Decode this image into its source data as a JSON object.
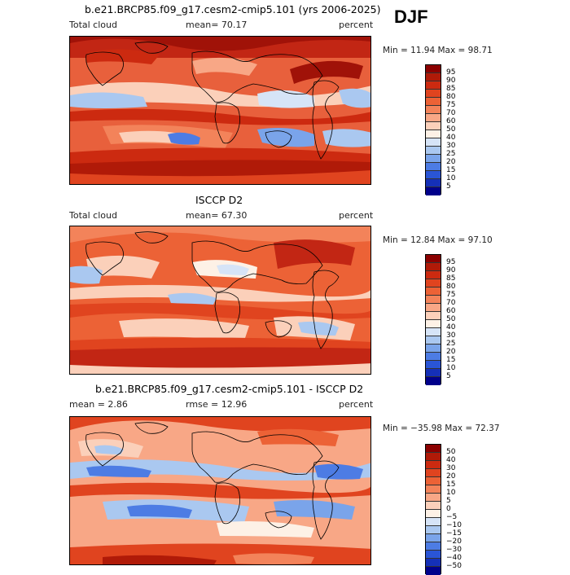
{
  "season": "DJF",
  "panels": [
    {
      "title": "b.e21.BRCP85.f09_g17.cesm2-cmip5.101 (yrs 2006-2025)",
      "left": "Total cloud",
      "mid": "mean=  70.17",
      "right": "percent",
      "minmax": "Min =  11.94 Max =  98.71",
      "palette": "cloud"
    },
    {
      "title": "ISCCP D2",
      "left": "Total cloud",
      "mid": "mean=  67.30",
      "right": "percent",
      "minmax": "Min =  12.84 Max =  97.10",
      "palette": "cloud"
    },
    {
      "title": "b.e21.BRCP85.f09_g17.cesm2-cmip5.101 - ISCCP D2",
      "left": "mean =   2.86",
      "mid": "rmse =  12.96",
      "right": "percent",
      "minmax": "Min = −35.98 Max =  72.37",
      "palette": "diff"
    }
  ],
  "colorbars": {
    "cloud": {
      "labels": [
        "95",
        "90",
        "85",
        "80",
        "75",
        "70",
        "60",
        "50",
        "40",
        "30",
        "25",
        "20",
        "15",
        "10",
        "5"
      ],
      "colors": [
        "#8b0000",
        "#b01a08",
        "#cc2a10",
        "#e0441f",
        "#ec6236",
        "#f3835a",
        "#f8a786",
        "#fbd0ba",
        "#fdf1e6",
        "#d6e4f7",
        "#aac8f0",
        "#7aa4ea",
        "#4d7ce4",
        "#2a55d6",
        "#1530b8",
        "#00008b"
      ]
    },
    "diff": {
      "labels": [
        "50",
        "40",
        "30",
        "20",
        "15",
        "10",
        "5",
        "0",
        "−5",
        "−10",
        "−15",
        "−20",
        "−30",
        "−40",
        "−50"
      ],
      "colors": [
        "#8b0000",
        "#b01a08",
        "#cc2a10",
        "#e0441f",
        "#ec6236",
        "#f3835a",
        "#f8a786",
        "#fbd0ba",
        "#fdf1e6",
        "#d6e4f7",
        "#aac8f0",
        "#7aa4ea",
        "#4d7ce4",
        "#2a55d6",
        "#1530b8",
        "#00008b"
      ]
    }
  }
}
